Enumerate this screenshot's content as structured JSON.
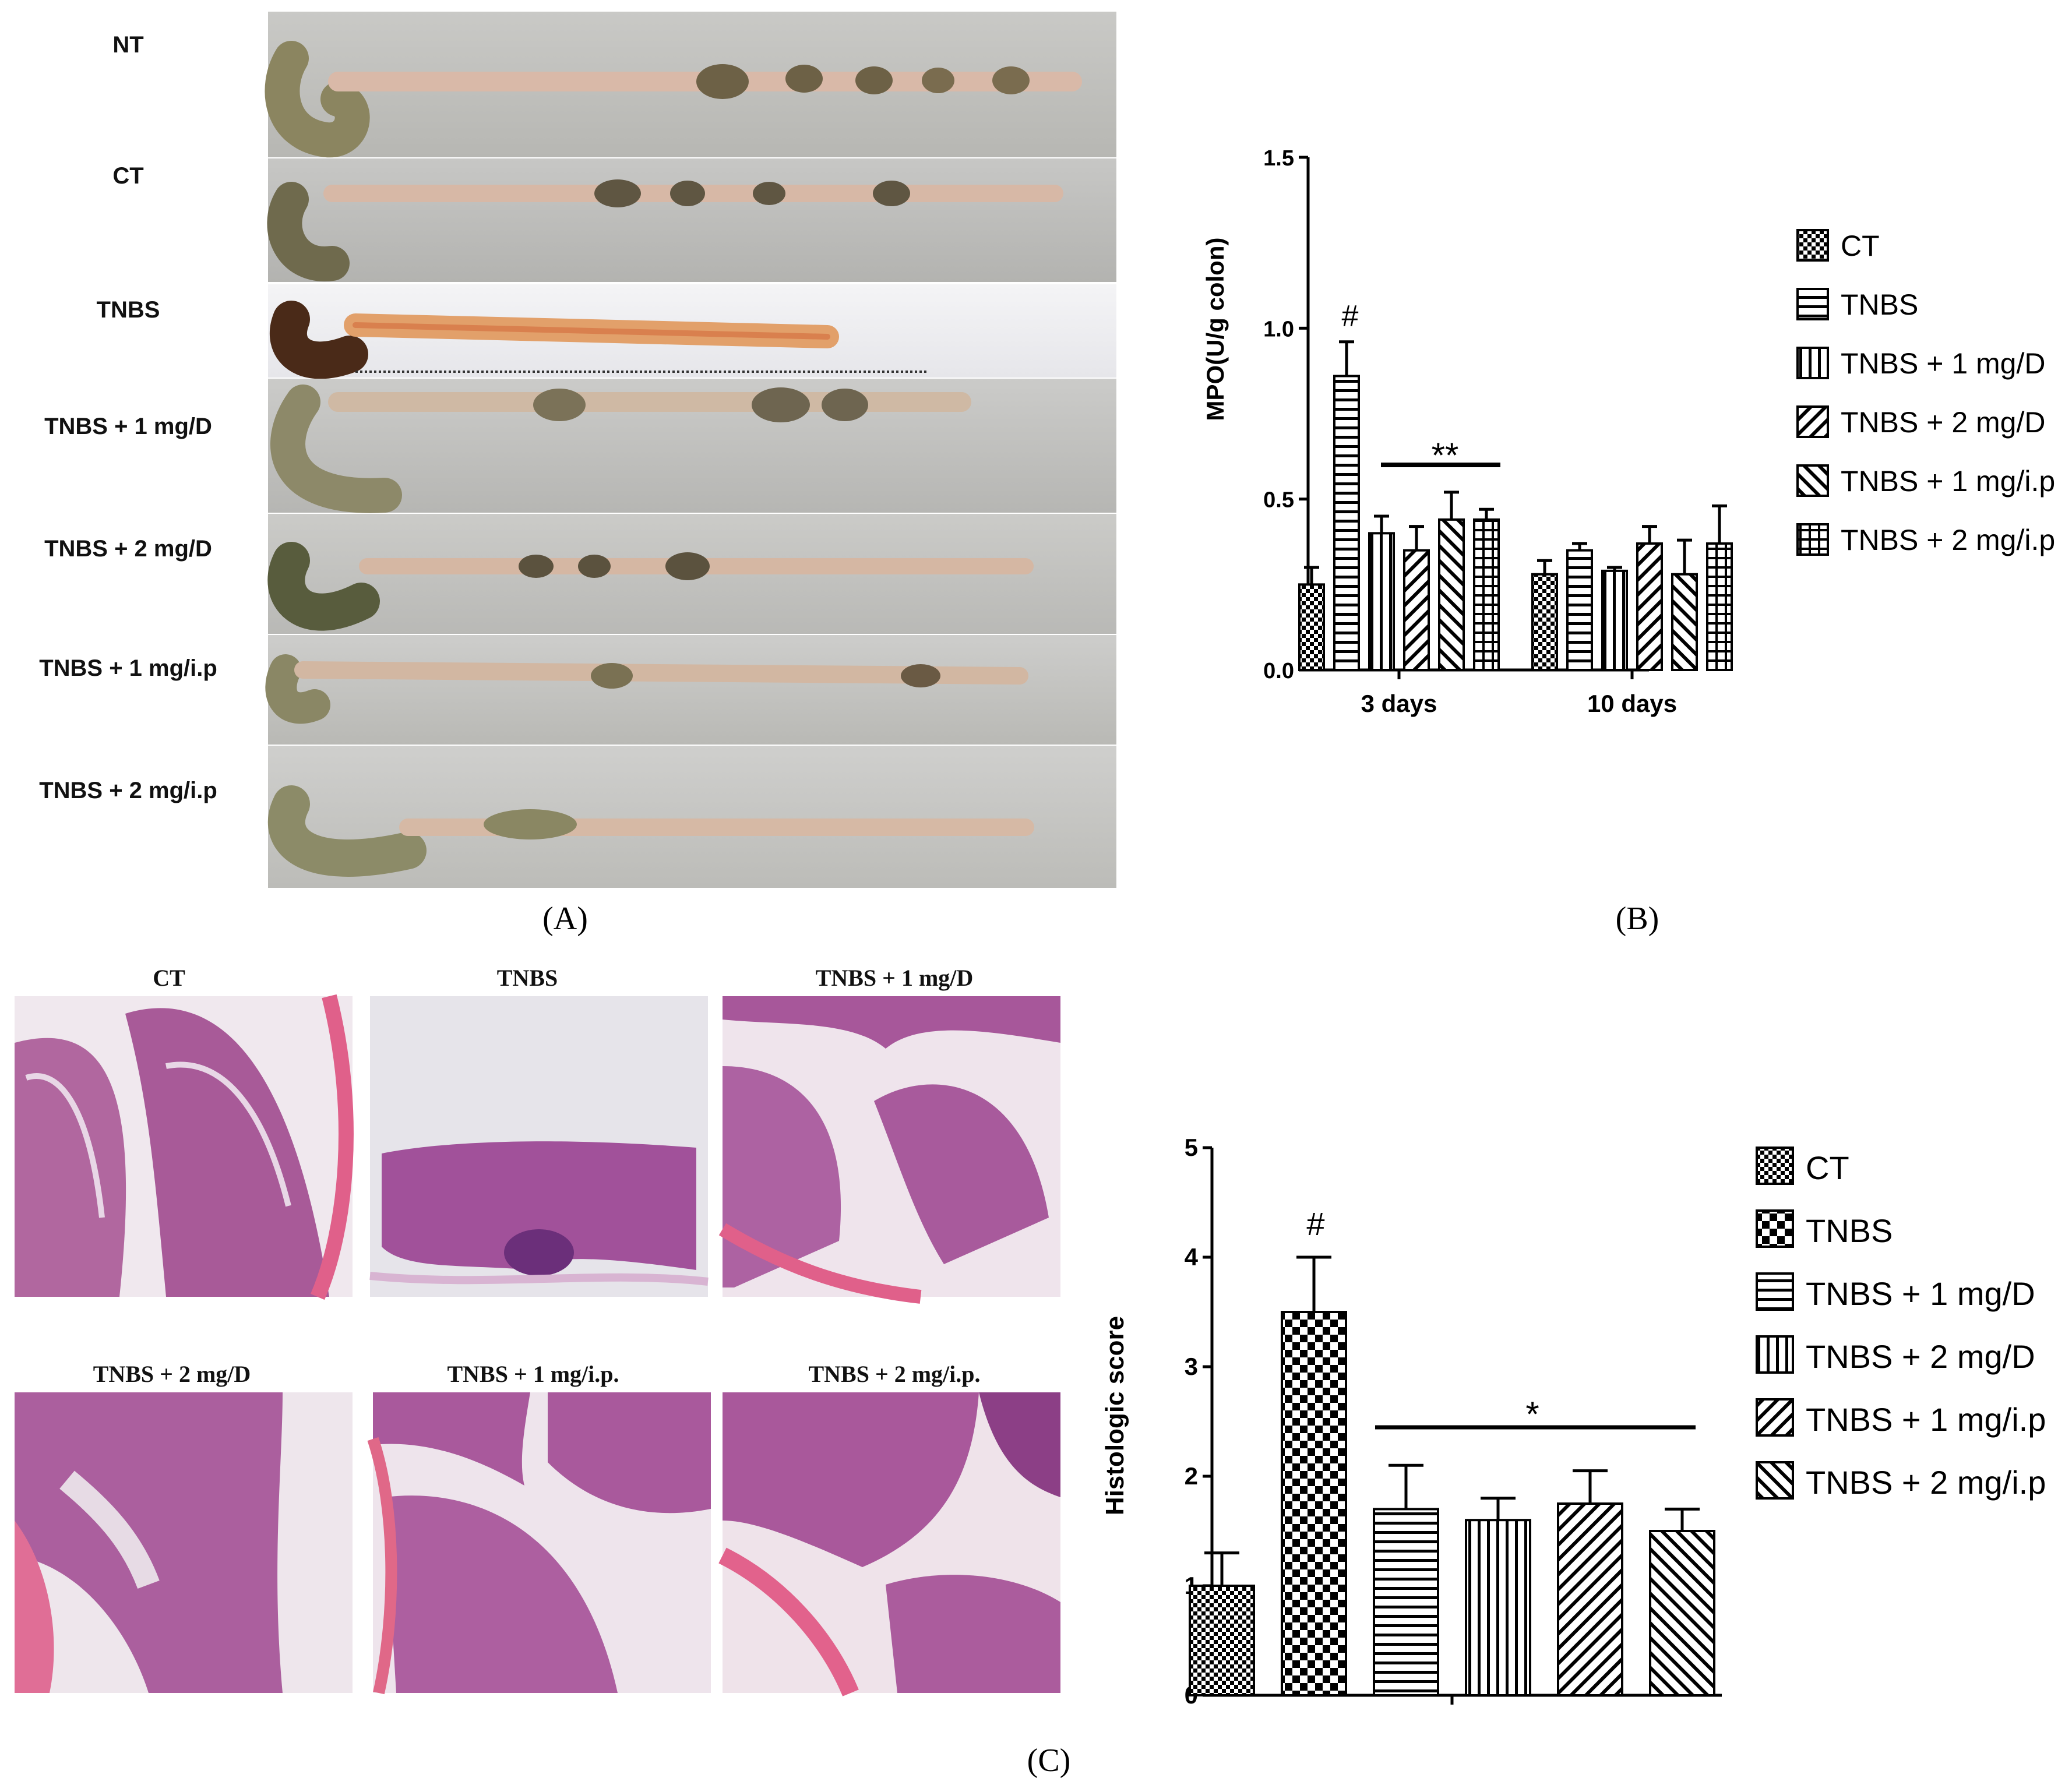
{
  "panelA": {
    "label": "(A)",
    "rows": [
      "NT",
      "CT",
      "TNBS",
      "TNBS + 1 mg/D",
      "TNBS + 2 mg/D",
      "TNBS + 1 mg/i.p",
      "TNBS + 2 mg/i.p"
    ]
  },
  "panelB": {
    "label": "(B)"
  },
  "panelC": {
    "label": "(C)",
    "micrographs": [
      "CT",
      "TNBS",
      "TNBS + 1 mg/D",
      "TNBS + 2 mg/D",
      "TNBS + 1 mg/i.p.",
      "TNBS + 2 mg/i.p."
    ]
  },
  "chart_data": [
    {
      "id": "mpo",
      "type": "bar",
      "ylabel": "MPO(U/g colon)",
      "xlabel": "",
      "ylim": [
        0,
        1.5
      ],
      "yticks": [
        "0.0",
        "0.5",
        "1.0",
        "1.5"
      ],
      "categories": [
        "3 days",
        "10 days"
      ],
      "series": [
        {
          "name": "CT",
          "values": [
            0.25,
            0.28
          ],
          "errors": [
            0.05,
            0.04
          ],
          "pattern": "checker-small"
        },
        {
          "name": "TNBS",
          "values": [
            0.86,
            0.35
          ],
          "errors": [
            0.1,
            0.02
          ],
          "pattern": "horizontal"
        },
        {
          "name": "TNBS + 1 mg/D",
          "values": [
            0.4,
            0.29
          ],
          "errors": [
            0.05,
            0.01
          ],
          "pattern": "vertical"
        },
        {
          "name": "TNBS + 2 mg/D",
          "values": [
            0.35,
            0.37
          ],
          "errors": [
            0.07,
            0.05
          ],
          "pattern": "diag-up"
        },
        {
          "name": "TNBS + 1 mg/i.p",
          "values": [
            0.44,
            0.28
          ],
          "errors": [
            0.08,
            0.1
          ],
          "pattern": "diag-down"
        },
        {
          "name": "TNBS + 2 mg/i.p",
          "values": [
            0.44,
            0.37
          ],
          "errors": [
            0.03,
            0.11
          ],
          "pattern": "grid"
        }
      ],
      "annotations": [
        "#",
        "**"
      ],
      "legend": "right"
    },
    {
      "id": "histo",
      "type": "bar",
      "ylabel": "Histologic score",
      "xlabel": "",
      "ylim": [
        0,
        5
      ],
      "yticks": [
        "0",
        "1",
        "2",
        "3",
        "4",
        "5"
      ],
      "categories": [
        ""
      ],
      "series": [
        {
          "name": "CT",
          "values": [
            1.0
          ],
          "errors": [
            0.3
          ],
          "pattern": "checker-small"
        },
        {
          "name": "TNBS",
          "values": [
            3.5
          ],
          "errors": [
            0.5
          ],
          "pattern": "checker-large"
        },
        {
          "name": "TNBS + 1 mg/D",
          "values": [
            1.7
          ],
          "errors": [
            0.4
          ],
          "pattern": "horizontal"
        },
        {
          "name": "TNBS + 2 mg/D",
          "values": [
            1.6
          ],
          "errors": [
            0.2
          ],
          "pattern": "vertical"
        },
        {
          "name": "TNBS + 1 mg/i.p",
          "values": [
            1.75
          ],
          "errors": [
            0.3
          ],
          "pattern": "diag-up"
        },
        {
          "name": "TNBS + 2 mg/i.p",
          "values": [
            1.5
          ],
          "errors": [
            0.2
          ],
          "pattern": "diag-down"
        }
      ],
      "annotations": [
        "#",
        "*"
      ],
      "legend": "right"
    }
  ]
}
